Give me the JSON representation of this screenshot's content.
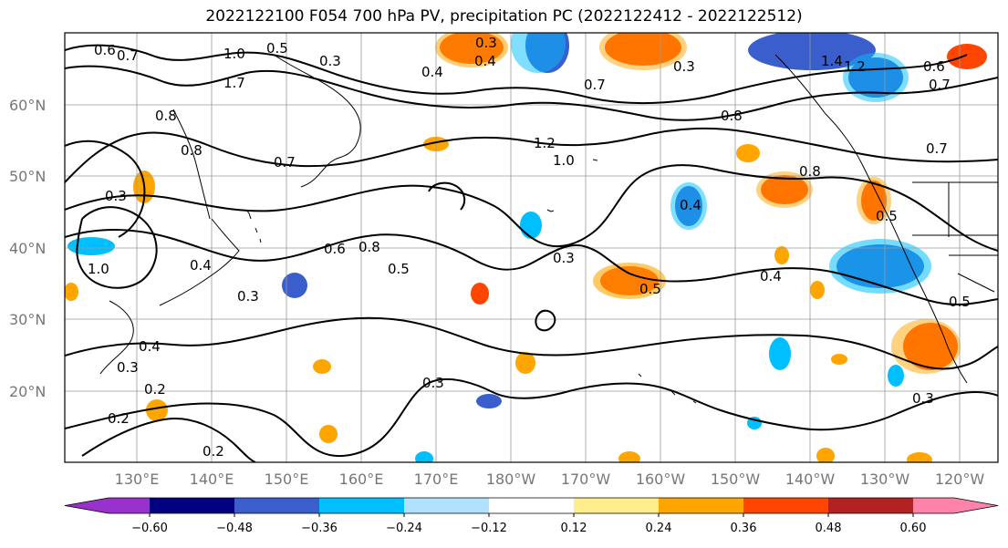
{
  "title": "2022122100 F054 700 hPa PV, precipitation PC (2022122412 - 2022122512)",
  "map": {
    "lat_labels": [
      "60°N",
      "50°N",
      "40°N",
      "30°N",
      "20°N"
    ],
    "lon_labels": [
      "130°E",
      "140°E",
      "150°E",
      "160°E",
      "170°E",
      "180°W",
      "170°W",
      "160°W",
      "150°W",
      "140°W",
      "130°W",
      "120°W"
    ]
  },
  "contour_labels": [
    "0.6",
    "0.7",
    "1.0",
    "0.5",
    "0.3",
    "0.3",
    "0.4",
    "0.7",
    "1.7",
    "0.8",
    "0.8",
    "1.2",
    "1.0",
    "0.7",
    "0.8",
    "0.4",
    "0.6",
    "0.8",
    "0.5",
    "0.3",
    "0.5",
    "0.4",
    "0.3",
    "0.4",
    "0.3",
    "0.2",
    "0.2",
    "0.3",
    "0.2",
    "1.0",
    "0.5",
    "0.3",
    "0.8",
    "0.7",
    "1.4",
    "1.2",
    "0.5",
    "0.7",
    "0.6",
    "0.4",
    "0.3",
    "0.4",
    "0.3"
  ],
  "colorbar": {
    "colors": [
      "#9932cc",
      "#000080",
      "#3a5fcd",
      "#00bfff",
      "#b0e2ff",
      "#ffffff",
      "#ffec8b",
      "#ffa500",
      "#ff4500",
      "#b22222",
      "#ff82ab"
    ],
    "tick_labels": [
      "−0.60",
      "−0.48",
      "−0.36",
      "−0.24",
      "−0.12",
      "0.12",
      "0.24",
      "0.36",
      "0.48",
      "0.60"
    ]
  }
}
